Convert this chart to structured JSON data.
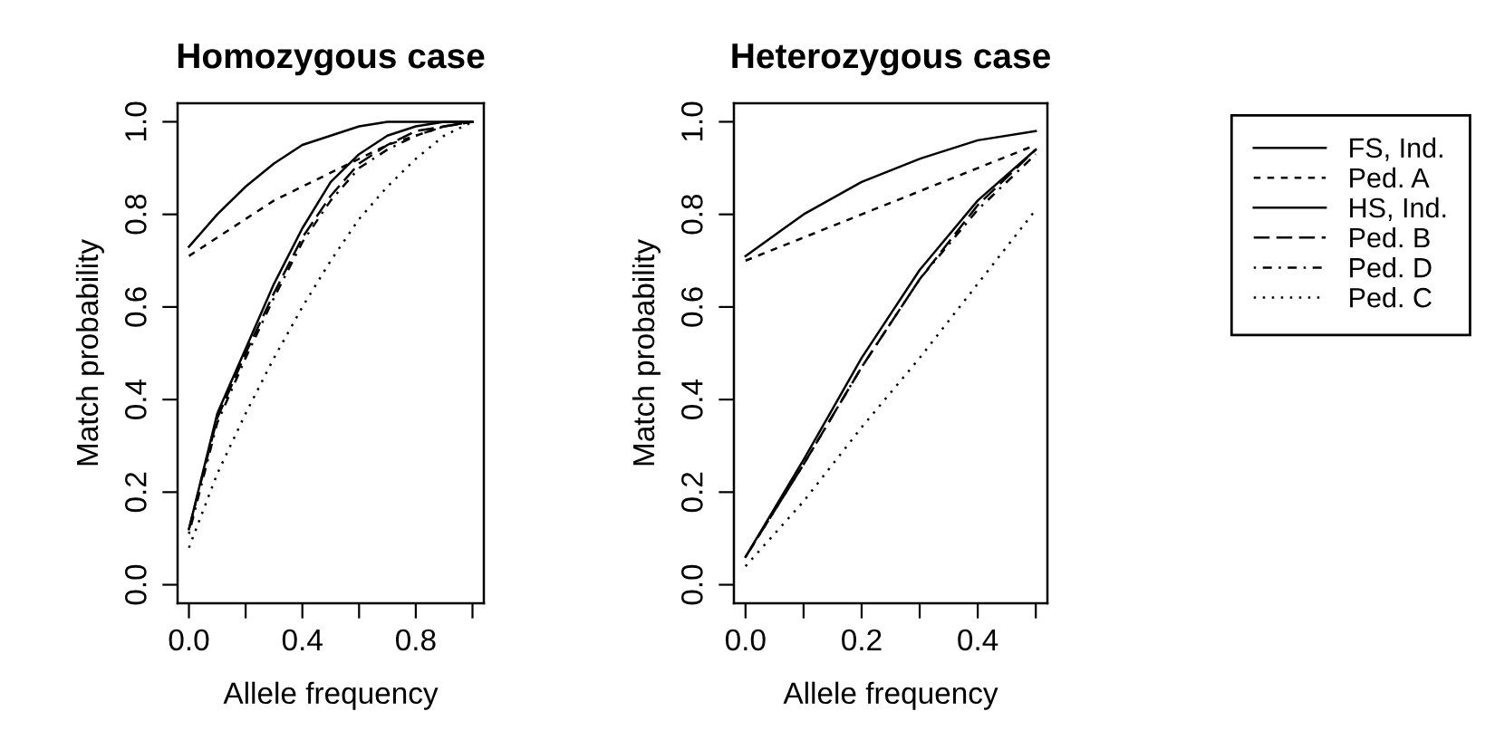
{
  "chart_data": [
    {
      "type": "line",
      "title": "Homozygous case",
      "xlabel": "Allele frequency",
      "ylabel": "Match probability",
      "xlim": [
        -0.04,
        1.04
      ],
      "ylim": [
        -0.04,
        1.04
      ],
      "xticks": [
        {
          "value": 0,
          "label": "0.0"
        },
        {
          "value": 0.2,
          "label": null
        },
        {
          "value": 0.4,
          "label": "0.4"
        },
        {
          "value": 0.6,
          "label": null
        },
        {
          "value": 0.8,
          "label": "0.8"
        },
        {
          "value": 1.0,
          "label": null
        }
      ],
      "yticks": [
        {
          "value": 0,
          "label": "0.0"
        },
        {
          "value": 0.2,
          "label": "0.2"
        },
        {
          "value": 0.4,
          "label": "0.4"
        },
        {
          "value": 0.6,
          "label": "0.6"
        },
        {
          "value": 0.8,
          "label": "0.8"
        },
        {
          "value": 1.0,
          "label": "1.0"
        }
      ],
      "x": [
        0,
        0.1,
        0.2,
        0.3,
        0.4,
        0.5,
        0.6,
        0.7,
        0.8,
        0.9,
        1.0
      ],
      "series": [
        {
          "color": "#000000",
          "line_style": "solid",
          "values": [
            0.73,
            0.8,
            0.86,
            0.91,
            0.95,
            0.97,
            0.99,
            1.0,
            1.0,
            1.0,
            1.0
          ]
        },
        {
          "color": "#000000",
          "line_style": "dashed",
          "values": [
            0.71,
            0.75,
            0.79,
            0.83,
            0.86,
            0.89,
            0.92,
            0.95,
            0.97,
            0.99,
            1.0
          ]
        },
        {
          "color": "#000000",
          "line_style": "solid",
          "values": [
            0.12,
            0.37,
            0.51,
            0.65,
            0.77,
            0.87,
            0.93,
            0.97,
            0.99,
            1.0,
            1.0
          ]
        },
        {
          "color": "#000000",
          "line_style": "longdash",
          "values": [
            0.12,
            0.36,
            0.5,
            0.63,
            0.75,
            0.84,
            0.91,
            0.95,
            0.98,
            0.99,
            1.0
          ]
        },
        {
          "color": "#000000",
          "line_style": "dashdot",
          "values": [
            0.11,
            0.35,
            0.49,
            0.62,
            0.74,
            0.83,
            0.9,
            0.94,
            0.97,
            0.99,
            1.0
          ]
        },
        {
          "color": "#000000",
          "line_style": "dotted",
          "values": [
            0.08,
            0.24,
            0.37,
            0.49,
            0.6,
            0.7,
            0.79,
            0.86,
            0.92,
            0.97,
            1.0
          ]
        }
      ]
    },
    {
      "type": "line",
      "title": "Heterozygous case",
      "xlabel": "Allele frequency",
      "ylabel": "Match probability",
      "xlim": [
        -0.02,
        0.52
      ],
      "ylim": [
        -0.04,
        1.04
      ],
      "legend": "right",
      "xticks": [
        {
          "value": 0,
          "label": "0.0"
        },
        {
          "value": 0.1,
          "label": null
        },
        {
          "value": 0.2,
          "label": "0.2"
        },
        {
          "value": 0.3,
          "label": null
        },
        {
          "value": 0.4,
          "label": "0.4"
        },
        {
          "value": 0.5,
          "label": null
        }
      ],
      "yticks": [
        {
          "value": 0,
          "label": "0.0"
        },
        {
          "value": 0.2,
          "label": "0.2"
        },
        {
          "value": 0.4,
          "label": "0.4"
        },
        {
          "value": 0.6,
          "label": "0.6"
        },
        {
          "value": 0.8,
          "label": "0.8"
        },
        {
          "value": 1.0,
          "label": "1.0"
        }
      ],
      "x": [
        0,
        0.1,
        0.2,
        0.3,
        0.4,
        0.5
      ],
      "series": [
        {
          "name": "FS, Ind.",
          "color": "#000000",
          "line_style": "solid",
          "values": [
            0.71,
            0.8,
            0.87,
            0.92,
            0.96,
            0.98
          ]
        },
        {
          "name": "Ped. A",
          "color": "#000000",
          "line_style": "dashed",
          "values": [
            0.7,
            0.75,
            0.8,
            0.85,
            0.9,
            0.95
          ]
        },
        {
          "name": "HS, Ind.",
          "color": "#000000",
          "line_style": "solid",
          "values": [
            0.06,
            0.27,
            0.49,
            0.68,
            0.83,
            0.94
          ]
        },
        {
          "name": "Ped. B",
          "color": "#000000",
          "line_style": "longdash",
          "values": [
            0.06,
            0.26,
            0.47,
            0.66,
            0.82,
            0.94
          ]
        },
        {
          "name": "Ped. D",
          "color": "#000000",
          "line_style": "dashdot",
          "values": [
            0.06,
            0.26,
            0.47,
            0.66,
            0.81,
            0.93
          ]
        },
        {
          "name": "Ped. C",
          "color": "#000000",
          "line_style": "dotted",
          "values": [
            0.04,
            0.18,
            0.34,
            0.49,
            0.65,
            0.81
          ]
        }
      ]
    }
  ]
}
